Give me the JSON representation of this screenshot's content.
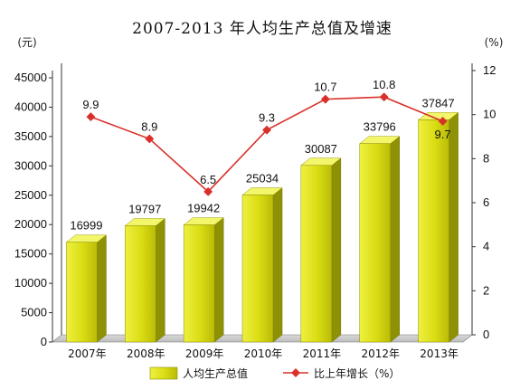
{
  "chart_data": {
    "title": "2007-2013 年人均生产总值及增速",
    "categories": [
      "2007年",
      "2008年",
      "2009年",
      "2010年",
      "2011年",
      "2012年",
      "2013年"
    ],
    "y_left": {
      "unit": "(元)",
      "min": 0,
      "max": 45000,
      "step": 5000
    },
    "y_right": {
      "unit": "(%)",
      "min": 0,
      "max": 12,
      "step": 2
    },
    "series": [
      {
        "name": "人均生产总值",
        "type": "bar",
        "axis": "left",
        "color": "#d4d80e",
        "values": [
          16999,
          19797,
          19942,
          25034,
          30087,
          33796,
          37847
        ]
      },
      {
        "name": "比上年增长（%）",
        "type": "line",
        "axis": "right",
        "color": "#d9302a",
        "values": [
          9.9,
          8.9,
          6.5,
          9.3,
          10.7,
          10.8,
          9.7
        ]
      }
    ]
  }
}
